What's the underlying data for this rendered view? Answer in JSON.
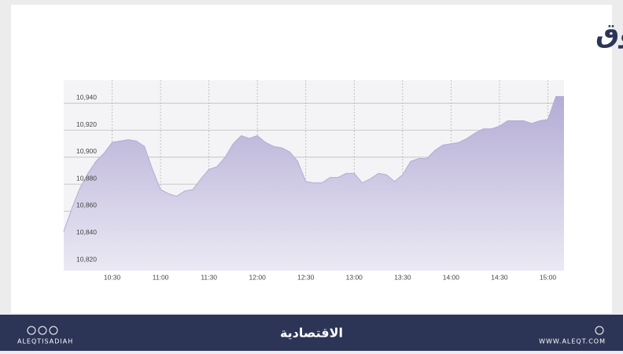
{
  "chart_data": {
    "type": "area",
    "title": "مؤشر السوق",
    "categories": [
      null,
      null,
      null,
      null,
      null,
      null,
      "10:30",
      null,
      null,
      null,
      null,
      null,
      "11:00",
      null,
      null,
      null,
      null,
      null,
      "11:30",
      null,
      null,
      null,
      null,
      null,
      "12:00",
      null,
      null,
      null,
      null,
      null,
      "12:30",
      null,
      null,
      null,
      null,
      null,
      "13:00",
      null,
      null,
      null,
      null,
      null,
      "13:30",
      null,
      null,
      null,
      null,
      null,
      "14:00",
      null,
      null,
      null,
      null,
      null,
      "14:30",
      null,
      null,
      null,
      null,
      null,
      "15:00",
      null,
      null
    ],
    "values": [
      10845,
      10862,
      10877,
      10888,
      10897,
      10903,
      10911,
      10912,
      10913,
      10912,
      10908,
      10891,
      10876,
      10873,
      10871,
      10875,
      10876,
      10884,
      10891,
      10893,
      10900,
      10910,
      10916,
      10914,
      10916,
      10911,
      10908,
      10907,
      10904,
      10897,
      10882,
      10881,
      10881,
      10885,
      10885,
      10888,
      10888,
      10881,
      10884,
      10888,
      10887,
      10882,
      10887,
      10897,
      10899,
      10899,
      10905,
      10909,
      10910,
      10911,
      10914,
      10918,
      10921,
      10921,
      10923,
      10927,
      10927,
      10927,
      10925,
      10927,
      10928,
      10945,
      10945
    ],
    "color": "#b4acd5",
    "ylim": [
      10816,
      10957
    ],
    "yticks": [
      {
        "value": 10820,
        "label": "10,820"
      },
      {
        "value": 10840,
        "label": "10,840"
      },
      {
        "value": 10860,
        "label": "10,860"
      },
      {
        "value": 10880,
        "label": "10,880"
      },
      {
        "value": 10900,
        "label": "10,900"
      },
      {
        "value": 10920,
        "label": "10,920"
      },
      {
        "value": 10940,
        "label": "10,940"
      }
    ],
    "grid": true
  },
  "footer": {
    "handle": "ALEQTISADIAH",
    "brand": "الاقتصادية",
    "website": "WWW.ALEQT.COM"
  }
}
